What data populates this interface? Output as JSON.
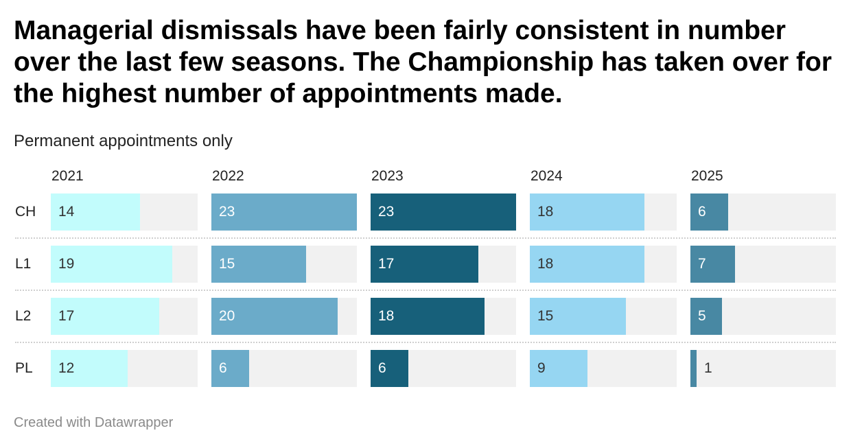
{
  "header": {
    "title": "Managerial dismissals have been fairly consistent in number over the last few seasons. The Championship has taken over for the highest number of appointments made.",
    "subtitle": "Permanent appointments only"
  },
  "footer": {
    "credit": "Created with Datawrapper"
  },
  "chart_data": {
    "type": "bar",
    "orientation": "horizontal",
    "layout": "small-multiples",
    "categories": [
      "CH",
      "L1",
      "L2",
      "PL"
    ],
    "xlim": [
      0,
      23
    ],
    "series": [
      {
        "name": "2021",
        "color": "#c2fcfc",
        "label_color": "#333333",
        "values": [
          14,
          19,
          17,
          12
        ]
      },
      {
        "name": "2022",
        "color": "#6babc9",
        "label_color": "#ffffff",
        "values": [
          23,
          15,
          20,
          6
        ]
      },
      {
        "name": "2023",
        "color": "#17607a",
        "label_color": "#ffffff",
        "values": [
          23,
          17,
          18,
          6
        ]
      },
      {
        "name": "2024",
        "color": "#96d6f2",
        "label_color": "#333333",
        "values": [
          18,
          18,
          15,
          9
        ]
      },
      {
        "name": "2025",
        "color": "#4888a3",
        "label_color": "#ffffff",
        "values": [
          6,
          7,
          5,
          1
        ]
      }
    ],
    "track_color": "#f1f1f1",
    "grid": false,
    "legend": "none"
  }
}
